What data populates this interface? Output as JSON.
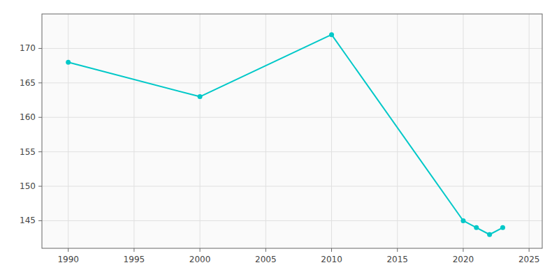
{
  "chart_data": {
    "type": "line",
    "x": [
      1990,
      2000,
      2010,
      2020,
      2021,
      2022,
      2023
    ],
    "values": [
      168,
      163,
      172,
      145,
      144,
      143,
      144
    ],
    "color": "#00c8c8",
    "marker": "circle",
    "xlim": [
      1988,
      2026
    ],
    "ylim": [
      141,
      175
    ],
    "xticks": [
      1990,
      1995,
      2000,
      2005,
      2010,
      2015,
      2020,
      2025
    ],
    "yticks": [
      145,
      150,
      155,
      160,
      165,
      170
    ],
    "grid": true
  }
}
